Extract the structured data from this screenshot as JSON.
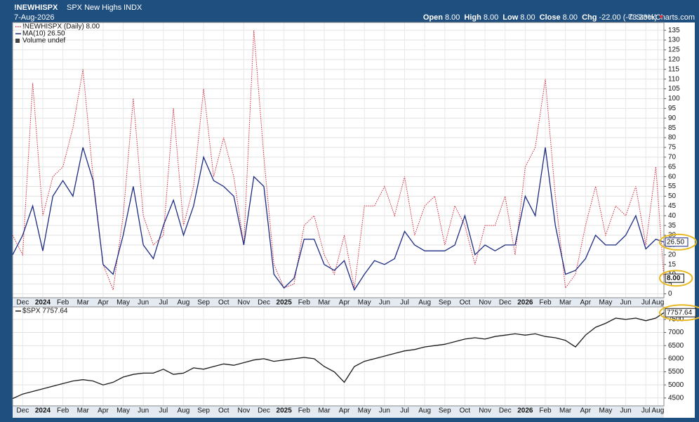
{
  "chart_data": {
    "type": "line",
    "title": "!NEWHISPX",
    "subtitle": "SPX New Highs",
    "exchange": "INDX",
    "date": "7-Aug-2026",
    "quote": [
      {
        "label": "Open",
        "value": "8.00"
      },
      {
        "label": "High",
        "value": "8.00"
      },
      {
        "label": "Low",
        "value": "8.00"
      },
      {
        "label": "Close",
        "value": "8.00"
      },
      {
        "label": "Chg",
        "value": "-22.00 (-73.33%)"
      }
    ],
    "watermark": "© StockCharts.com",
    "x": [
      0,
      0.5,
      1,
      1.5,
      2,
      2.5,
      3,
      3.5,
      4,
      4.5,
      5,
      5.5,
      6,
      6.5,
      7,
      7.5,
      8,
      8.5,
      9,
      9.5,
      10,
      10.5,
      11,
      11.5,
      12,
      12.5,
      13,
      13.5,
      14,
      14.5,
      15,
      15.5,
      16,
      16.5,
      17,
      17.5,
      18,
      18.5,
      19,
      19.5,
      20,
      20.5,
      21,
      21.5,
      22,
      22.5,
      23,
      23.5,
      24,
      24.5,
      25,
      25.5,
      26,
      26.5,
      27,
      27.5,
      28,
      28.5,
      29,
      29.5,
      30,
      30.5,
      31,
      31.5,
      32,
      32.4
    ],
    "xlim": [
      0,
      32.4
    ],
    "xticks": [
      {
        "value": 0.5,
        "label": "Dec"
      },
      {
        "value": 1.5,
        "label": "2024"
      },
      {
        "value": 2.5,
        "label": "Feb"
      },
      {
        "value": 3.5,
        "label": "Mar"
      },
      {
        "value": 4.5,
        "label": "Apr"
      },
      {
        "value": 5.5,
        "label": "May"
      },
      {
        "value": 6.5,
        "label": "Jun"
      },
      {
        "value": 7.5,
        "label": "Jul"
      },
      {
        "value": 8.5,
        "label": "Aug"
      },
      {
        "value": 9.5,
        "label": "Sep"
      },
      {
        "value": 10.5,
        "label": "Oct"
      },
      {
        "value": 11.5,
        "label": "Nov"
      },
      {
        "value": 12.5,
        "label": "Dec"
      },
      {
        "value": 13.5,
        "label": "2025"
      },
      {
        "value": 14.5,
        "label": "Feb"
      },
      {
        "value": 15.5,
        "label": "Mar"
      },
      {
        "value": 16.5,
        "label": "Apr"
      },
      {
        "value": 17.5,
        "label": "May"
      },
      {
        "value": 18.5,
        "label": "Jun"
      },
      {
        "value": 19.5,
        "label": "Jul"
      },
      {
        "value": 20.5,
        "label": "Aug"
      },
      {
        "value": 21.5,
        "label": "Sep"
      },
      {
        "value": 22.5,
        "label": "Oct"
      },
      {
        "value": 23.5,
        "label": "Nov"
      },
      {
        "value": 24.5,
        "label": "Dec"
      },
      {
        "value": 25.5,
        "label": "2026"
      },
      {
        "value": 26.5,
        "label": "Feb"
      },
      {
        "value": 27.5,
        "label": "Mar"
      },
      {
        "value": 28.5,
        "label": "Apr"
      },
      {
        "value": 29.5,
        "label": "May"
      },
      {
        "value": 30.5,
        "label": "Jun"
      },
      {
        "value": 31.5,
        "label": "Jul"
      },
      {
        "value": 32.1,
        "label": "Aug"
      }
    ],
    "grid": true,
    "panels": [
      {
        "ylim": [
          -2,
          139
        ],
        "yticks": [
          0,
          5,
          10,
          15,
          20,
          25,
          30,
          35,
          40,
          45,
          50,
          55,
          60,
          65,
          70,
          75,
          80,
          85,
          90,
          95,
          100,
          105,
          110,
          115,
          120,
          125,
          130,
          135
        ],
        "legend_extra": "Volume undef",
        "series": [
          {
            "name": "!NEWHISPX (Daily) 8.00",
            "color": "#d0263a",
            "style": "dotted",
            "last_label": "8.00",
            "values": [
              30,
              20,
              108,
              40,
              60,
              65,
              85,
              115,
              60,
              15,
              2,
              40,
              100,
              40,
              25,
              30,
              95,
              35,
              55,
              105,
              60,
              80,
              60,
              25,
              135,
              70,
              15,
              3,
              5,
              35,
              40,
              20,
              10,
              30,
              3,
              45,
              45,
              55,
              40,
              60,
              30,
              45,
              50,
              25,
              45,
              35,
              15,
              35,
              35,
              50,
              20,
              65,
              75,
              110,
              50,
              3,
              10,
              35,
              55,
              30,
              45,
              40,
              55,
              25,
              65,
              8
            ]
          },
          {
            "name": "MA(10) 26.50",
            "color": "#1c2a80",
            "style": "solid",
            "last_label": "26.50",
            "values": [
              20,
              30,
              45,
              22,
              50,
              58,
              50,
              75,
              58,
              15,
              10,
              30,
              55,
              25,
              18,
              35,
              48,
              30,
              45,
              70,
              58,
              55,
              50,
              25,
              60,
              55,
              10,
              3,
              8,
              28,
              28,
              15,
              12,
              17,
              2,
              10,
              17,
              15,
              18,
              32,
              25,
              22,
              22,
              22,
              25,
              40,
              20,
              25,
              22,
              25,
              25,
              50,
              40,
              75,
              35,
              10,
              12,
              18,
              30,
              25,
              25,
              30,
              40,
              23,
              28,
              26.5
            ]
          }
        ]
      },
      {
        "ylim": [
          4200,
          7980
        ],
        "yticks": [
          4500,
          5000,
          5500,
          6000,
          6500,
          7000,
          7500
        ],
        "series": [
          {
            "name": "$SPX 7757.64",
            "color": "#1a1a1a",
            "style": "solid",
            "last_label": "7757.64",
            "values": [
              4480,
              4650,
              4750,
              4850,
              4950,
              5050,
              5150,
              5200,
              5150,
              5000,
              5100,
              5300,
              5400,
              5450,
              5450,
              5600,
              5400,
              5450,
              5650,
              5600,
              5700,
              5800,
              5750,
              5850,
              5950,
              6000,
              5900,
              5950,
              6000,
              6050,
              6000,
              5700,
              5500,
              5100,
              5700,
              5900,
              6000,
              6100,
              6200,
              6300,
              6350,
              6450,
              6500,
              6550,
              6650,
              6750,
              6800,
              6750,
              6850,
              6900,
              6950,
              6900,
              6950,
              6850,
              6800,
              6700,
              6450,
              6900,
              7200,
              7350,
              7550,
              7500,
              7550,
              7450,
              7550,
              7757.64
            ]
          }
        ]
      }
    ]
  }
}
